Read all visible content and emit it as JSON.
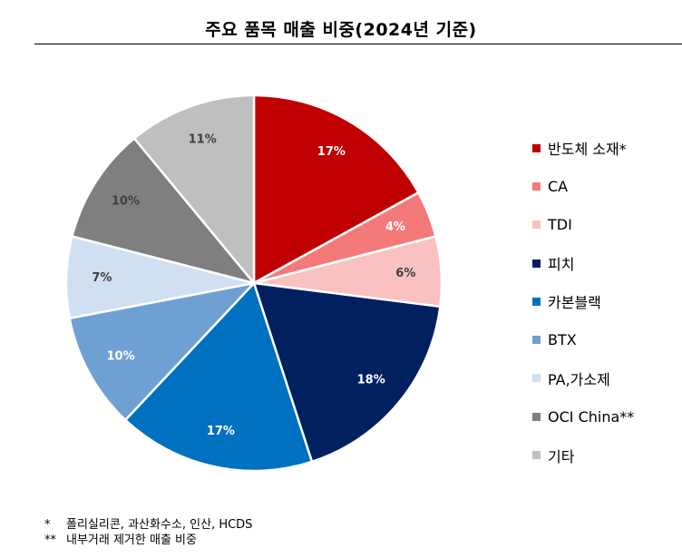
{
  "chart_data": {
    "type": "pie",
    "title": "주요 품목 매출 비중(2024년 기준)",
    "categories": [
      "반도체 소재*",
      "CA",
      "TDI",
      "피치",
      "카본블랙",
      "BTX",
      "PA,가소제",
      "OCI China**",
      "기타"
    ],
    "values": [
      17,
      4,
      6,
      18,
      17,
      10,
      7,
      10,
      11
    ],
    "value_labels": [
      "17%",
      "4%",
      "6%",
      "18%",
      "17%",
      "10%",
      "7%",
      "10%",
      "11%"
    ],
    "colors": [
      "#c00000",
      "#f47a7a",
      "#fac1c1",
      "#002060",
      "#0070c0",
      "#6fa0d4",
      "#d0e0f2",
      "#7f7f7f",
      "#bfbfbf"
    ],
    "label_colors": [
      "#ffffff",
      "#ffffff",
      "#404040",
      "#ffffff",
      "#ffffff",
      "#ffffff",
      "#404040",
      "#404040",
      "#404040"
    ],
    "legend_position": "right",
    "start_angle_deg": 0,
    "direction": "clockwise"
  },
  "footnotes": [
    {
      "mark": "*",
      "text": "폴리실리콘, 과산화수소, 인산, HCDS"
    },
    {
      "mark": "**",
      "text": "내부거래 제거한 매출 비중"
    }
  ]
}
